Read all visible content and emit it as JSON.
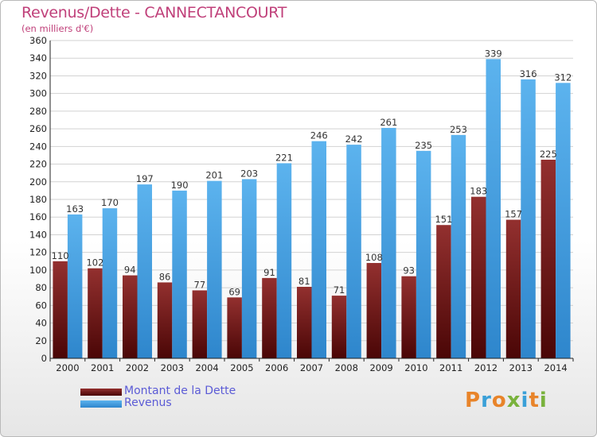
{
  "header": {
    "title": "Revenus/Dette - CANNECTANCOURT",
    "subtitle": "(en milliers d'€)"
  },
  "legend": {
    "items": [
      {
        "label": "Montant de la Dette",
        "color": "#7a1a1a"
      },
      {
        "label": "Revenus",
        "color": "#4aa3e6"
      }
    ]
  },
  "logo": {
    "text": "Proxiti",
    "colors": [
      "#e8842a",
      "#3aa0d8",
      "#e8842a",
      "#79b23c",
      "#3aa0d8",
      "#e8842a",
      "#79b23c"
    ]
  },
  "chart_data": {
    "type": "bar",
    "categories": [
      "2000",
      "2001",
      "2002",
      "2003",
      "2004",
      "2005",
      "2006",
      "2007",
      "2008",
      "2009",
      "2010",
      "2011",
      "2012",
      "2013",
      "2014"
    ],
    "series": [
      {
        "name": "Montant de la Dette",
        "color": "#7a1a1a",
        "values": [
          110,
          102,
          94,
          86,
          77,
          69,
          91,
          81,
          71,
          108,
          93,
          151,
          183,
          157,
          225
        ]
      },
      {
        "name": "Revenus",
        "color": "#4aa3e6",
        "values": [
          163,
          170,
          197,
          190,
          201,
          203,
          221,
          246,
          242,
          261,
          235,
          253,
          339,
          316,
          312
        ]
      }
    ],
    "ylim": [
      0,
      360
    ],
    "ytick_step": 20,
    "grid": true
  }
}
